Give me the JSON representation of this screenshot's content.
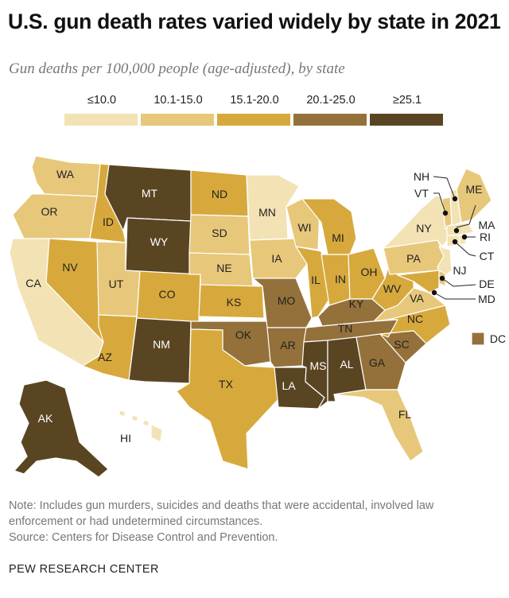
{
  "title": "U.S. gun death rates varied widely by state in 2021",
  "subtitle": "Gun deaths per 100,000 people (age-adjusted), by state",
  "legend": [
    {
      "label": "≤10.0",
      "color": "#f3e2b4"
    },
    {
      "label": "10.1-15.0",
      "color": "#e7c77a"
    },
    {
      "label": "15.1-20.0",
      "color": "#d7a93c"
    },
    {
      "label": "20.1-25.0",
      "color": "#94713a"
    },
    {
      "label": "≥25.1",
      "color": "#5a4523"
    }
  ],
  "states": {
    "WA": {
      "label": "WA",
      "bin": 1
    },
    "OR": {
      "label": "OR",
      "bin": 1
    },
    "CA": {
      "label": "CA",
      "bin": 0
    },
    "ID": {
      "label": "ID",
      "bin": 2
    },
    "NV": {
      "label": "NV",
      "bin": 2
    },
    "MT": {
      "label": "MT",
      "bin": 4
    },
    "WY": {
      "label": "WY",
      "bin": 4
    },
    "UT": {
      "label": "UT",
      "bin": 1
    },
    "AZ": {
      "label": "AZ",
      "bin": 2
    },
    "CO": {
      "label": "CO",
      "bin": 2
    },
    "NM": {
      "label": "NM",
      "bin": 4
    },
    "ND": {
      "label": "ND",
      "bin": 2
    },
    "SD": {
      "label": "SD",
      "bin": 1
    },
    "NE": {
      "label": "NE",
      "bin": 1
    },
    "KS": {
      "label": "KS",
      "bin": 2
    },
    "OK": {
      "label": "OK",
      "bin": 3
    },
    "TX": {
      "label": "TX",
      "bin": 2
    },
    "MN": {
      "label": "MN",
      "bin": 0
    },
    "IA": {
      "label": "IA",
      "bin": 1
    },
    "MO": {
      "label": "MO",
      "bin": 3
    },
    "AR": {
      "label": "AR",
      "bin": 3
    },
    "LA": {
      "label": "LA",
      "bin": 4
    },
    "WI": {
      "label": "WI",
      "bin": 1
    },
    "IL": {
      "label": "IL",
      "bin": 2
    },
    "MI": {
      "label": "MI",
      "bin": 2
    },
    "IN": {
      "label": "IN",
      "bin": 2
    },
    "OH": {
      "label": "OH",
      "bin": 2
    },
    "KY": {
      "label": "KY",
      "bin": 3
    },
    "TN": {
      "label": "TN",
      "bin": 3
    },
    "MS": {
      "label": "MS",
      "bin": 4
    },
    "AL": {
      "label": "AL",
      "bin": 4
    },
    "GA": {
      "label": "GA",
      "bin": 3
    },
    "FL": {
      "label": "FL",
      "bin": 1
    },
    "SC": {
      "label": "SC",
      "bin": 3
    },
    "NC": {
      "label": "NC",
      "bin": 2
    },
    "VA": {
      "label": "VA",
      "bin": 1
    },
    "WV": {
      "label": "WV",
      "bin": 2
    },
    "PA": {
      "label": "PA",
      "bin": 1
    },
    "NY": {
      "label": "NY",
      "bin": 0
    },
    "NJ": {
      "label": "NJ",
      "bin": 0
    },
    "DE": {
      "label": "DE",
      "bin": 1
    },
    "MD": {
      "label": "MD",
      "bin": 2
    },
    "DC": {
      "label": "DC",
      "bin": 3
    },
    "VT": {
      "label": "VT",
      "bin": 1
    },
    "NH": {
      "label": "NH",
      "bin": 0
    },
    "ME": {
      "label": "ME",
      "bin": 1
    },
    "MA": {
      "label": "MA",
      "bin": 0
    },
    "RI": {
      "label": "RI",
      "bin": 0
    },
    "CT": {
      "label": "CT",
      "bin": 0
    },
    "AK": {
      "label": "AK",
      "bin": 4
    },
    "HI": {
      "label": "HI",
      "bin": 0
    }
  },
  "note": "Note: Includes gun murders, suicides and deaths that were accidental, involved law enforcement or had undetermined circumstances.",
  "source": "Source: Centers for Disease Control and Prevention.",
  "org": "PEW RESEARCH CENTER"
}
